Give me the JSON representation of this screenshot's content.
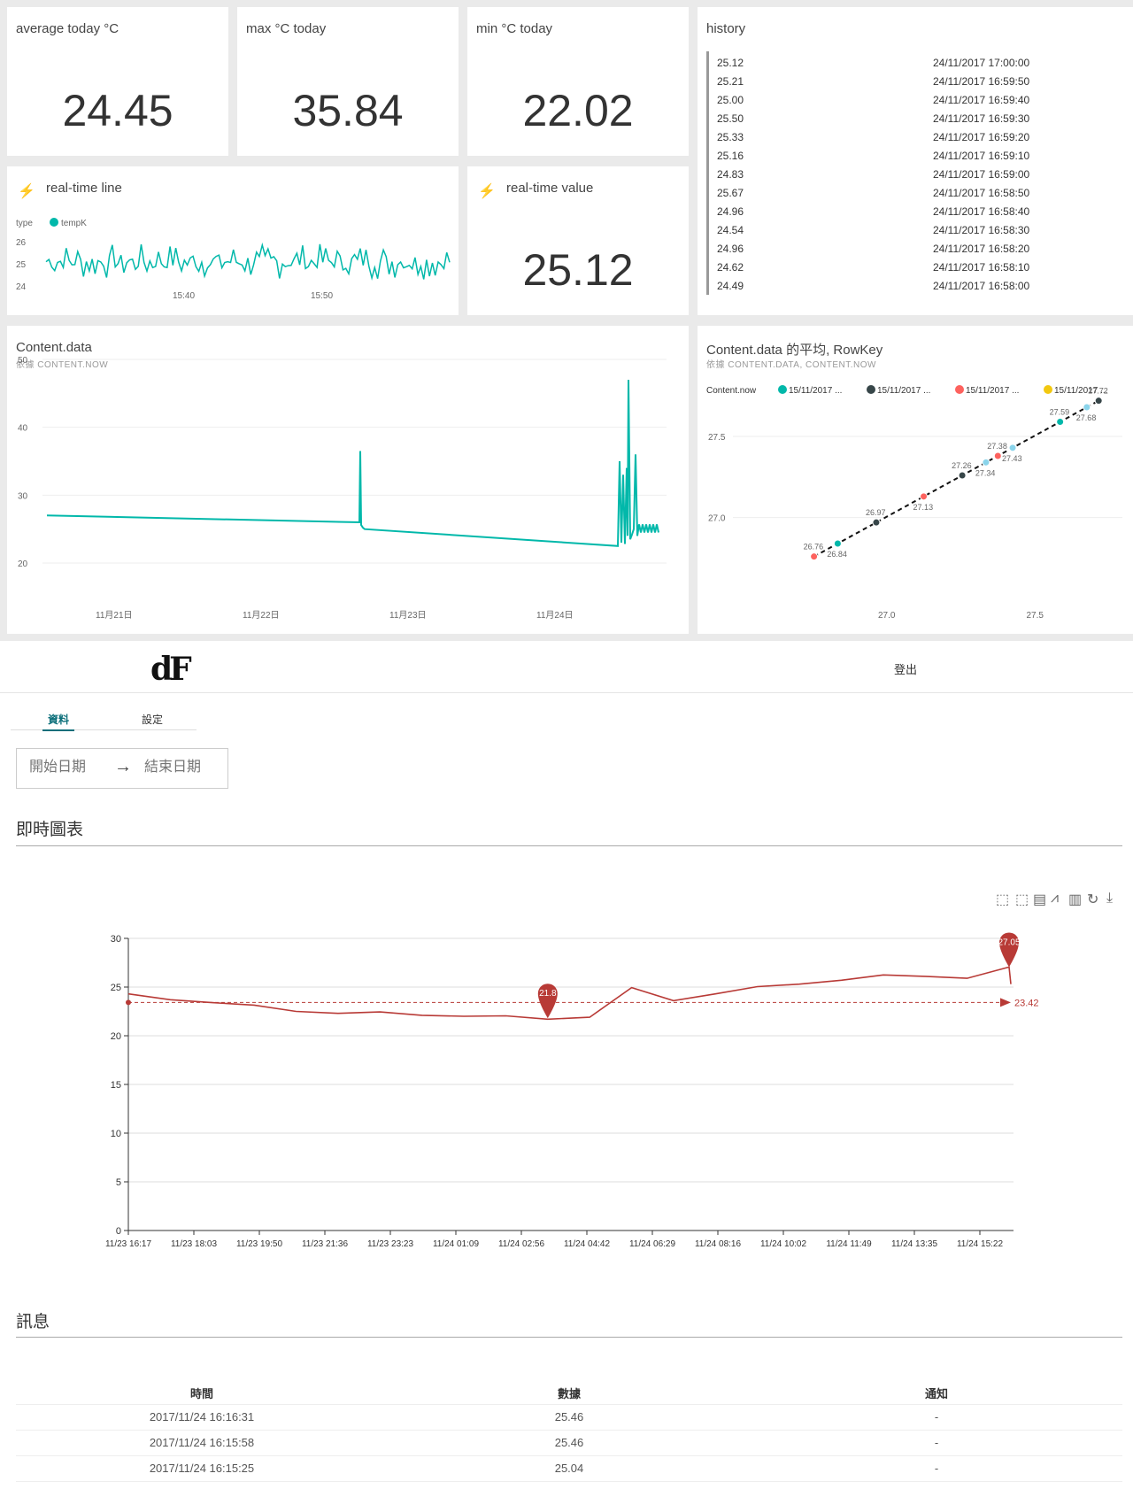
{
  "dashboard": {
    "avg": {
      "title": "average today °C",
      "value": "24.45"
    },
    "max": {
      "title": "max °C today",
      "value": "35.84"
    },
    "min": {
      "title": "min °C today",
      "value": "22.02"
    },
    "history": {
      "title": "history",
      "rows": [
        {
          "value": "25.12",
          "time": "24/11/2017 17:00:00"
        },
        {
          "value": "25.21",
          "time": "24/11/2017 16:59:50"
        },
        {
          "value": "25.00",
          "time": "24/11/2017 16:59:40"
        },
        {
          "value": "25.50",
          "time": "24/11/2017 16:59:30"
        },
        {
          "value": "25.33",
          "time": "24/11/2017 16:59:20"
        },
        {
          "value": "25.16",
          "time": "24/11/2017 16:59:10"
        },
        {
          "value": "24.83",
          "time": "24/11/2017 16:59:00"
        },
        {
          "value": "25.67",
          "time": "24/11/2017 16:58:50"
        },
        {
          "value": "24.96",
          "time": "24/11/2017 16:58:40"
        },
        {
          "value": "24.54",
          "time": "24/11/2017 16:58:30"
        },
        {
          "value": "24.96",
          "time": "24/11/2017 16:58:20"
        },
        {
          "value": "24.62",
          "time": "24/11/2017 16:58:10"
        },
        {
          "value": "24.49",
          "time": "24/11/2017 16:58:00"
        }
      ]
    },
    "rt_line": {
      "title": "real-time line",
      "legend_label": "type",
      "legend_series": "tempK",
      "yticks": [
        "26",
        "25",
        "24"
      ],
      "xticks": [
        "15:40",
        "15:50"
      ]
    },
    "rt_value": {
      "title": "real-time value",
      "value": "25.12"
    },
    "content": {
      "title": "Content.data",
      "subtitle": "依據 CONTENT.NOW",
      "yticks": [
        "50",
        "40",
        "30",
        "20"
      ],
      "xticks": [
        "11月21日",
        "11月22日",
        "11月23日",
        "11月24日"
      ]
    },
    "scatter": {
      "title": "Content.data 的平均, RowKey",
      "subtitle": "依據 CONTENT.DATA, CONTENT.NOW",
      "legend_label": "Content.now",
      "legend": [
        {
          "name": "15/11/2017 ...",
          "color": "#01b8aa"
        },
        {
          "name": "15/11/2017 ...",
          "color": "#374649"
        },
        {
          "name": "15/11/2017 ...",
          "color": "#fd625e"
        },
        {
          "name": "15/11/2017 ...",
          "color": "#f2c80f"
        }
      ],
      "yticks": [
        "27.5",
        "27.0"
      ],
      "xticks": [
        "27.0",
        "27.5"
      ]
    }
  },
  "app": {
    "logo": "dF",
    "logout": "登出",
    "tabs": [
      "資料",
      "設定"
    ],
    "start_placeholder": "開始日期",
    "end_placeholder": "結束日期",
    "realtime_title": "即時圖表",
    "messages_title": "訊息",
    "table": {
      "headers": [
        "時間",
        "數據",
        "通知"
      ],
      "rows": [
        [
          "2017/11/24 16:16:31",
          "25.46",
          "-"
        ],
        [
          "2017/11/24 16:15:58",
          "25.46",
          "-"
        ],
        [
          "2017/11/24 16:15:25",
          "25.04",
          "-"
        ]
      ]
    }
  },
  "chart_data": [
    {
      "type": "line",
      "title": "real-time line",
      "series": [
        {
          "name": "tempK",
          "color": "#01b8aa",
          "range": [
            24.3,
            25.9
          ]
        }
      ],
      "ylim": [
        24,
        26
      ],
      "xticks": [
        "15:40",
        "15:50"
      ]
    },
    {
      "type": "line",
      "title": "Content.data",
      "ylim": [
        20,
        50
      ],
      "xticks": [
        "11月21日",
        "11月22日",
        "11月23日",
        "11月24日"
      ],
      "series": [
        {
          "name": "Content.data",
          "color": "#01b8aa",
          "points": [
            [
              "11/20 14:00",
              27.0
            ],
            [
              "11/22 18:00",
              26.0
            ],
            [
              "11/22 18:15",
              36.5
            ],
            [
              "11/22 18:30",
              25.0
            ],
            [
              "11/24 11:00",
              22.5
            ],
            [
              "11/24 12:00",
              47.0
            ],
            [
              "11/24 12:30",
              25.0
            ],
            [
              "11/24 17:00",
              25.3
            ]
          ]
        }
      ]
    },
    {
      "type": "scatter",
      "title": "Content.data 的平均, RowKey",
      "xlim": [
        26.6,
        27.8
      ],
      "ylim": [
        26.6,
        27.8
      ],
      "points": [
        {
          "x": 26.76,
          "y": 26.76
        },
        {
          "x": 26.84,
          "y": 26.84
        },
        {
          "x": 26.97,
          "y": 26.97
        },
        {
          "x": 27.13,
          "y": 27.13
        },
        {
          "x": 27.26,
          "y": 27.26
        },
        {
          "x": 27.34,
          "y": 27.34
        },
        {
          "x": 27.38,
          "y": 27.38
        },
        {
          "x": 27.43,
          "y": 27.43
        },
        {
          "x": 27.59,
          "y": 27.59
        },
        {
          "x": 27.68,
          "y": 27.68
        },
        {
          "x": 27.72,
          "y": 27.72
        }
      ]
    },
    {
      "type": "line",
      "title": "即時圖表",
      "ylim": [
        0,
        30
      ],
      "yticks": [
        "30",
        "25",
        "20",
        "15",
        "10",
        "5",
        "0"
      ],
      "xticks": [
        "11/23 16:17",
        "11/23 18:03",
        "11/23 19:50",
        "11/23 21:36",
        "11/23 23:23",
        "11/24 01:09",
        "11/24 02:56",
        "11/24 04:42",
        "11/24 06:29",
        "11/24 08:16",
        "11/24 10:02",
        "11/24 11:49",
        "11/24 13:35",
        "11/24 15:22"
      ],
      "series": [
        {
          "name": "data",
          "color": "#b83a36",
          "values": [
            24.3,
            23.8,
            23.5,
            23.0,
            22.6,
            22.4,
            22.3,
            22.2,
            22.1,
            21.9,
            21.8,
            22.0,
            24.8,
            23.7,
            24.4,
            24.9,
            25.4,
            25.8,
            26.1,
            26.2,
            26.0,
            27.05,
            25.3
          ]
        }
      ],
      "markpoints": [
        {
          "label": "21.8"
        },
        {
          "label": "27.05"
        }
      ],
      "markline": {
        "label": "23.42",
        "value": 23.42
      }
    }
  ]
}
